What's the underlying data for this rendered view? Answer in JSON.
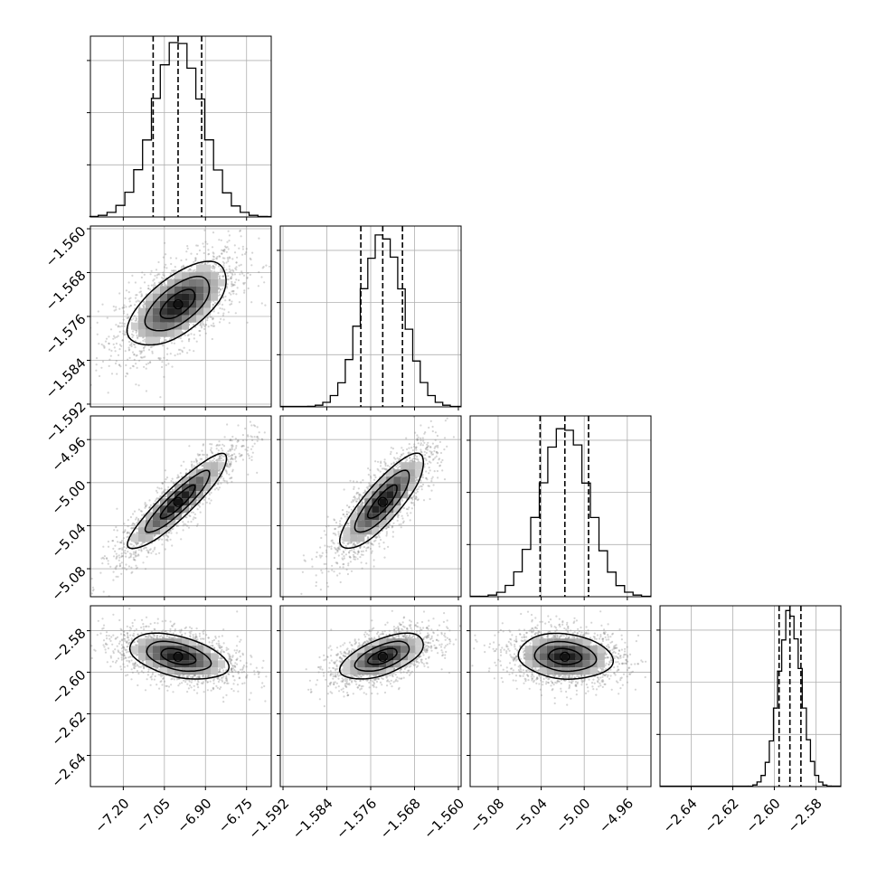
{
  "chart_data": {
    "type": "scatter",
    "title": "",
    "grid": true,
    "parameters": [
      {
        "axis_range": [
          -7.32,
          -6.66
        ],
        "ticks": [
          -7.2,
          -7.05,
          -6.9,
          -6.75
        ],
        "tick_labels": [
          "−7.20",
          "−7.05",
          "−6.90",
          "−6.75"
        ],
        "median": -7.0,
        "quantiles": [
          -7.091,
          -7.0,
          -6.914
        ],
        "std": 0.09
      },
      {
        "axis_range": [
          -1.5925,
          -1.5595
        ],
        "ticks": [
          -1.592,
          -1.584,
          -1.576,
          -1.568,
          -1.56
        ],
        "tick_labels": [
          "−1.592",
          "−1.584",
          "−1.576",
          "−1.568",
          "−1.560"
        ],
        "median": -1.5738,
        "quantiles": [
          -1.5778,
          -1.5738,
          -1.5702
        ],
        "std": 0.0038
      },
      {
        "axis_range": [
          -5.106,
          -4.938
        ],
        "ticks": [
          -5.08,
          -5.04,
          -5.0,
          -4.96
        ],
        "tick_labels": [
          "−5.08",
          "−5.04",
          "−5.00",
          "−4.96"
        ],
        "median": -5.018,
        "quantiles": [
          -5.041,
          -5.018,
          -4.996
        ],
        "std": 0.022
      },
      {
        "axis_range": [
          -2.655,
          -2.568
        ],
        "ticks": [
          -2.64,
          -2.62,
          -2.6,
          -2.58
        ],
        "tick_labels": [
          "−2.64",
          "−2.62",
          "−2.60",
          "−2.58"
        ],
        "median": -2.5925,
        "quantiles": [
          -2.5977,
          -2.5925,
          -2.5872
        ],
        "std": 0.0055
      }
    ],
    "correlations": [
      [
        1.0,
        0.6,
        0.9,
        -0.4
      ],
      [
        0.6,
        1.0,
        0.82,
        0.55
      ],
      [
        0.9,
        0.82,
        1.0,
        -0.1
      ],
      [
        -0.4,
        0.55,
        -0.1,
        1.0
      ]
    ],
    "histogram_y_ticks": [
      0.3,
      0.6,
      0.9
    ],
    "histogram_peak": 1.0
  }
}
